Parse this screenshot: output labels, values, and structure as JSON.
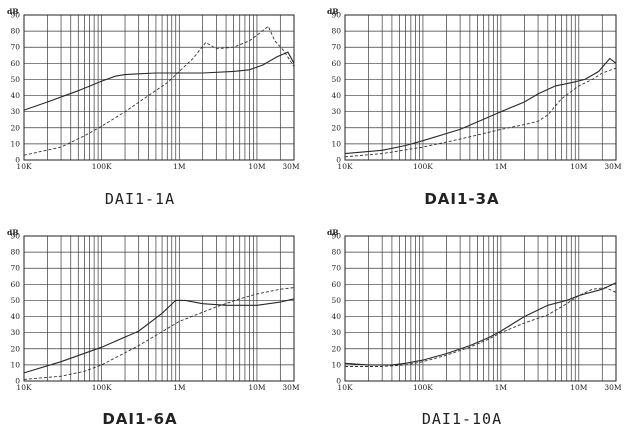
{
  "chart_data": [
    {
      "type": "line",
      "title": "DAI1-1A",
      "title_bold": false,
      "ylabel": "dB",
      "xscale": "log",
      "xlim_hz": [
        10000,
        30000000
      ],
      "ylim": [
        0,
        90
      ],
      "yticks": [
        "0",
        "10",
        "20",
        "30",
        "40",
        "50",
        "60",
        "70",
        "80",
        "90"
      ],
      "xticks": [
        {
          "label": "10K",
          "value": 10000
        },
        {
          "label": "100K",
          "value": 100000
        },
        {
          "label": "1M",
          "value": 1000000
        },
        {
          "label": "10M",
          "value": 10000000
        },
        {
          "label": "30M",
          "value": 30000000
        }
      ],
      "grid": true,
      "series": [
        {
          "style": "solid",
          "x": [
            10000,
            20000,
            50000,
            100000,
            150000,
            200000,
            300000,
            500000,
            1000000,
            2000000,
            5000000,
            8000000,
            12000000,
            18000000,
            25000000,
            30000000
          ],
          "y": [
            31,
            36,
            43,
            49,
            52,
            53,
            53.5,
            54,
            54,
            54,
            55,
            56,
            59,
            64,
            67,
            60
          ]
        },
        {
          "style": "dashed",
          "x": [
            10000,
            30000,
            60000,
            100000,
            200000,
            400000,
            700000,
            1000000,
            1500000,
            2200000,
            3000000,
            5000000,
            8000000,
            11000000,
            14000000,
            17000000,
            22000000,
            30000000
          ],
          "y": [
            3,
            8,
            15,
            21,
            30,
            40,
            48,
            55,
            63,
            73,
            69,
            70,
            74,
            79,
            83,
            74,
            68,
            58
          ]
        }
      ]
    },
    {
      "type": "line",
      "title": "DAI1-3A",
      "title_bold": true,
      "ylabel": "dB",
      "xscale": "log",
      "xlim_hz": [
        10000,
        30000000
      ],
      "ylim": [
        0,
        90
      ],
      "yticks": [
        "0",
        "10",
        "20",
        "30",
        "40",
        "50",
        "60",
        "70",
        "80",
        "90"
      ],
      "xticks": [
        {
          "label": "10K",
          "value": 10000
        },
        {
          "label": "100K",
          "value": 100000
        },
        {
          "label": "1M",
          "value": 1000000
        },
        {
          "label": "10M",
          "value": 10000000
        },
        {
          "label": "30M",
          "value": 30000000
        }
      ],
      "grid": true,
      "series": [
        {
          "style": "solid",
          "x": [
            10000,
            30000,
            60000,
            100000,
            300000,
            1000000,
            2000000,
            3000000,
            5000000,
            8000000,
            12000000,
            18000000,
            25000000,
            30000000
          ],
          "y": [
            4,
            6,
            9,
            12,
            19,
            30,
            36,
            41,
            46,
            48,
            50,
            55,
            63,
            60
          ]
        },
        {
          "style": "dashed",
          "x": [
            10000,
            30000,
            100000,
            300000,
            1000000,
            2000000,
            3000000,
            4000000,
            6000000,
            10000000,
            15000000,
            20000000,
            30000000
          ],
          "y": [
            2,
            4,
            8,
            13,
            19,
            22,
            24,
            28,
            38,
            46,
            50,
            54,
            57
          ]
        }
      ]
    },
    {
      "type": "line",
      "title": "DAI1-6A",
      "title_bold": true,
      "ylabel": "dB",
      "xscale": "log",
      "xlim_hz": [
        10000,
        30000000
      ],
      "ylim": [
        0,
        90
      ],
      "yticks": [
        "0",
        "10",
        "20",
        "30",
        "40",
        "50",
        "60",
        "70",
        "80",
        "90"
      ],
      "xticks": [
        {
          "label": "10K",
          "value": 10000
        },
        {
          "label": "100K",
          "value": 100000
        },
        {
          "label": "1M",
          "value": 1000000
        },
        {
          "label": "10M",
          "value": 10000000
        },
        {
          "label": "30M",
          "value": 30000000
        }
      ],
      "grid": true,
      "series": [
        {
          "style": "solid",
          "x": [
            10000,
            30000,
            100000,
            300000,
            600000,
            900000,
            1200000,
            2000000,
            4000000,
            10000000,
            20000000,
            30000000
          ],
          "y": [
            5,
            12,
            21,
            31,
            42,
            50,
            50,
            48,
            47,
            47,
            49,
            51
          ]
        },
        {
          "style": "dashed",
          "x": [
            10000,
            30000,
            60000,
            100000,
            300000,
            1000000,
            3000000,
            6000000,
            10000000,
            20000000,
            30000000
          ],
          "y": [
            1,
            3,
            6,
            10,
            22,
            37,
            46,
            51,
            54,
            57,
            58
          ]
        }
      ]
    },
    {
      "type": "line",
      "title": "DAI1-10A",
      "title_bold": false,
      "ylabel": "dB",
      "xscale": "log",
      "xlim_hz": [
        10000,
        30000000
      ],
      "ylim": [
        0,
        90
      ],
      "yticks": [
        "0",
        "10",
        "20",
        "30",
        "40",
        "50",
        "60",
        "70",
        "80",
        "90"
      ],
      "xticks": [
        {
          "label": "10K",
          "value": 10000
        },
        {
          "label": "100K",
          "value": 100000
        },
        {
          "label": "1M",
          "value": 1000000
        },
        {
          "label": "10M",
          "value": 10000000
        },
        {
          "label": "30M",
          "value": 30000000
        }
      ],
      "grid": true,
      "series": [
        {
          "style": "solid",
          "x": [
            10000,
            20000,
            40000,
            60000,
            100000,
            200000,
            400000,
            700000,
            1000000,
            2000000,
            4000000,
            7000000,
            10000000,
            20000000,
            30000000
          ],
          "y": [
            11,
            10,
            10,
            11,
            13,
            17,
            22,
            27,
            31,
            40,
            47,
            50,
            53,
            57,
            61
          ]
        },
        {
          "style": "dashed",
          "x": [
            10000,
            30000,
            60000,
            100000,
            200000,
            400000,
            700000,
            1000000,
            2000000,
            4000000,
            7000000,
            10000000,
            15000000,
            22000000,
            30000000
          ],
          "y": [
            9,
            9,
            10,
            12,
            16,
            21,
            26,
            30,
            36,
            41,
            48,
            53,
            57,
            58,
            55
          ]
        }
      ]
    }
  ]
}
